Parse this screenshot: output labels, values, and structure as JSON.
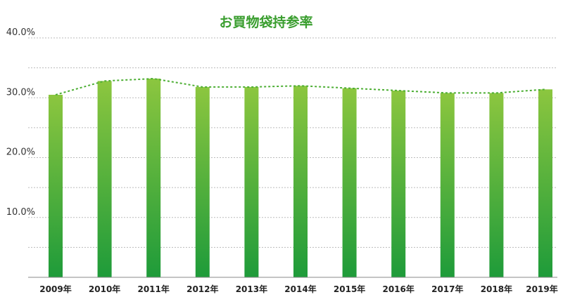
{
  "chart_data": {
    "type": "bar",
    "title": "お買物袋持参率",
    "categories": [
      "2009年",
      "2010年",
      "2011年",
      "2012年",
      "2013年",
      "2014年",
      "2015年",
      "2016年",
      "2017年",
      "2018年",
      "2019年"
    ],
    "series": [
      {
        "values": [
          30.5,
          32.8,
          33.2,
          31.8,
          31.8,
          32.0,
          31.6,
          31.2,
          30.8,
          30.8,
          31.4
        ]
      }
    ],
    "overlay_line": {
      "style": "dotted",
      "source": "bar_tops"
    },
    "ylim": [
      0,
      40
    ],
    "yticks": [
      "10.0%",
      "20.0%",
      "30.0%",
      "40.0%"
    ],
    "grid": true,
    "legend": "none",
    "colors": {
      "title": "#3a9e2f",
      "bar_top": "#8cc63f",
      "bar_bottom": "#1e9b3a",
      "line": "#4cae33",
      "grid": "#bbbbbb",
      "axis": "#888888"
    }
  }
}
